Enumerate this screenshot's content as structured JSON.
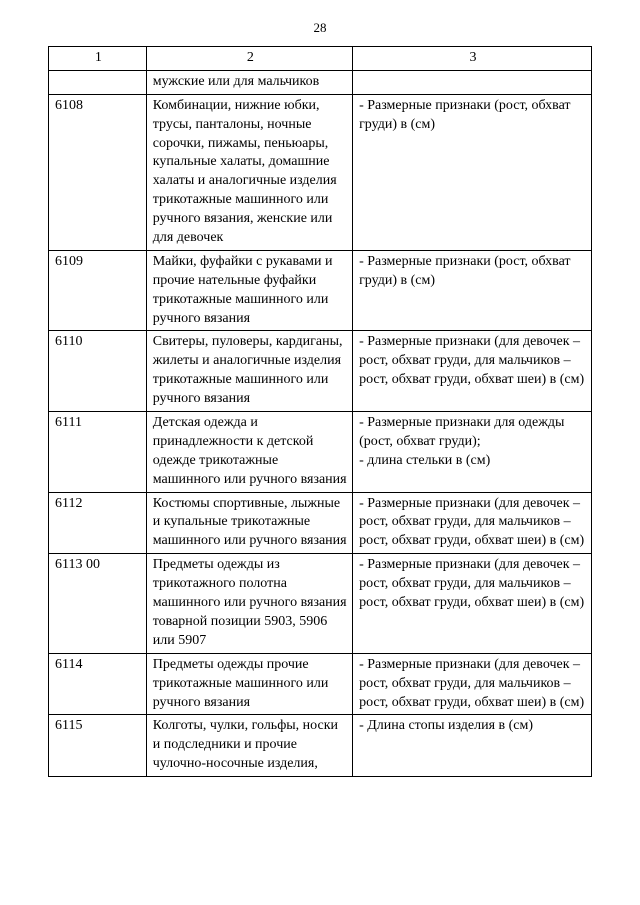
{
  "page_number": "28",
  "table": {
    "headers": [
      "1",
      "2",
      "3"
    ],
    "rows": [
      {
        "c1": "",
        "c2": " мужские или для мальчиков",
        "c3": ""
      },
      {
        "c1": "6108",
        "c2": "Комбинации, нижние юбки, трусы, панталоны, ночные сорочки, пижамы, пеньюары, купальные халаты, домашние халаты и аналогичные изделия трикотажные машинного или ручного вязания, женские или для девочек",
        "c3": " - Размерные признаки (рост, обхват груди) в (см)"
      },
      {
        "c1": "6109",
        "c2": "Майки, фуфайки с рукавами и прочие нательные фуфайки трикотажные машинного или ручного вязания",
        "c3": " - Размерные признаки (рост, обхват груди) в (см)"
      },
      {
        "c1": "6110",
        "c2": "Свитеры, пуловеры, кардиганы, жилеты и аналогичные изделия трикотажные машинного или ручного вязания",
        "c3": " - Размерные признаки (для девочек – рост, обхват груди, для мальчиков – рост, обхват груди, обхват шеи) в (см)"
      },
      {
        "c1": "6111",
        "c2": "Детская одежда и принадлежности к детской одежде трикотажные машинного или ручного вязания",
        "c3": " - Размерные признаки для одежды (рост, обхват груди);\n - длина стельки в (см)"
      },
      {
        "c1": "6112",
        "c2": "Костюмы спортивные, лыжные и купальные трикотажные машинного или ручного вязания",
        "c3": " - Размерные признаки (для девочек – рост, обхват груди, для мальчиков – рост, обхват груди, обхват шеи) в (см)"
      },
      {
        "c1": "6113 00",
        "c2": "Предметы одежды из трикотажного полотна машинного или ручного вязания товарной позиции 5903, 5906 или 5907",
        "c3": " - Размерные признаки (для девочек – рост, обхват груди, для мальчиков – рост, обхват груди, обхват шеи) в (см)"
      },
      {
        "c1": "6114",
        "c2": "Предметы одежды прочие трикотажные машинного или ручного вязания",
        "c3": " - Размерные признаки (для девочек – рост, обхват груди, для мальчиков – рост, обхват груди, обхват шеи) в (см)"
      },
      {
        "c1": "6115",
        "c2": "Колготы, чулки, гольфы, носки и подследники и прочие чулочно-носочные изделия,",
        "c3": " - Длина стопы изделия в (см)"
      }
    ]
  }
}
